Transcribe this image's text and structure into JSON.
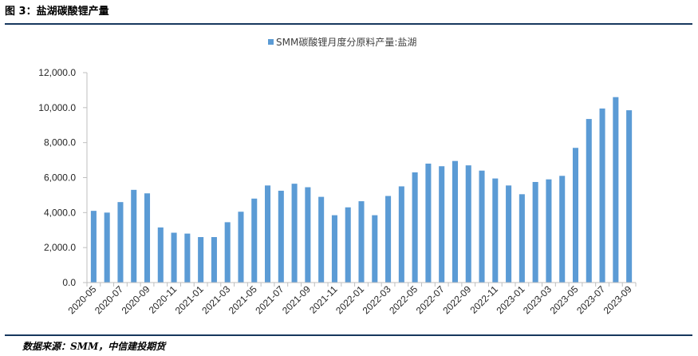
{
  "figure": {
    "title": "图 3：盐湖碳酸锂产量",
    "source": "数据来源：SMM，中信建投期货"
  },
  "colors": {
    "bar": "#5b9bd5",
    "axis": "#bfbfbf",
    "rule": "#17375e"
  },
  "chart_data": {
    "type": "bar",
    "title": "",
    "legend_position": "top-center",
    "grid": false,
    "ylim": [
      0,
      12000
    ],
    "yticks": [
      "0.0",
      "2,000.0",
      "4,000.0",
      "6,000.0",
      "8,000.0",
      "10,000.0",
      "12,000.0"
    ],
    "xticks": [
      "2020-05",
      "2020-07",
      "2020-09",
      "2020-11",
      "2021-01",
      "2021-03",
      "2021-05",
      "2021-07",
      "2021-09",
      "2021-11",
      "2022-01",
      "2022-03",
      "2022-05",
      "2022-07",
      "2022-09",
      "2022-11",
      "2023-01",
      "2023-03",
      "2023-05",
      "2023-07",
      "2023-09"
    ],
    "categories": [
      "2020-05",
      "2020-06",
      "2020-07",
      "2020-08",
      "2020-09",
      "2020-10",
      "2020-11",
      "2020-12",
      "2021-01",
      "2021-02",
      "2021-03",
      "2021-04",
      "2021-05",
      "2021-06",
      "2021-07",
      "2021-08",
      "2021-09",
      "2021-10",
      "2021-11",
      "2021-12",
      "2022-01",
      "2022-02",
      "2022-03",
      "2022-04",
      "2022-05",
      "2022-06",
      "2022-07",
      "2022-08",
      "2022-09",
      "2022-10",
      "2022-11",
      "2022-12",
      "2023-01",
      "2023-02",
      "2023-03",
      "2023-04",
      "2023-05",
      "2023-06",
      "2023-07",
      "2023-08",
      "2023-09"
    ],
    "series": [
      {
        "name": "SMM碳酸锂月度分原料产量:盐湖",
        "values": [
          4100,
          4000,
          4600,
          5300,
          5100,
          3150,
          2850,
          2800,
          2600,
          2600,
          3450,
          4050,
          4800,
          5550,
          5250,
          5650,
          5450,
          4900,
          3850,
          4300,
          4650,
          3850,
          4950,
          5500,
          6300,
          6800,
          6650,
          6950,
          6700,
          6400,
          5950,
          5550,
          5050,
          5750,
          5900,
          6100,
          7700,
          9350,
          9950,
          10600,
          9850
        ]
      }
    ]
  }
}
